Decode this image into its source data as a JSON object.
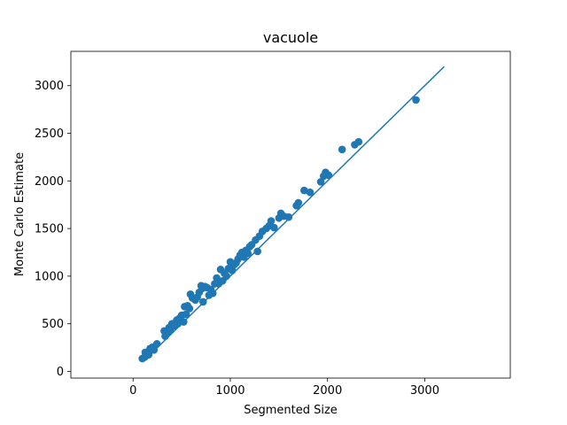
{
  "chart_data": {
    "type": "scatter",
    "title": "vacuole",
    "xlabel": "Segmented Size",
    "ylabel": "Monte Carlo Estimate",
    "xlim": [
      -640,
      3880
    ],
    "ylim": [
      -70,
      3360
    ],
    "xticks": [
      0,
      1000,
      2000,
      3000
    ],
    "xtick_labels": [
      "0",
      "1000",
      "2000",
      "3000"
    ],
    "yticks": [
      0,
      500,
      1000,
      1500,
      2000,
      2500,
      3000
    ],
    "ytick_labels": [
      "0",
      "500",
      "1000",
      "1500",
      "2000",
      "2500",
      "3000"
    ],
    "grid": false,
    "legend": "none",
    "colors": {
      "series": "#1f77b4",
      "axes": "#000000",
      "background": "#ffffff"
    },
    "line": {
      "x": [
        100,
        3200
      ],
      "y": [
        100,
        3200
      ]
    },
    "points": [
      [
        95,
        135
      ],
      [
        120,
        150
      ],
      [
        125,
        200
      ],
      [
        160,
        175
      ],
      [
        175,
        240
      ],
      [
        200,
        255
      ],
      [
        215,
        225
      ],
      [
        245,
        290
      ],
      [
        320,
        425
      ],
      [
        330,
        370
      ],
      [
        350,
        400
      ],
      [
        370,
        460
      ],
      [
        380,
        440
      ],
      [
        400,
        500
      ],
      [
        420,
        475
      ],
      [
        450,
        540
      ],
      [
        460,
        500
      ],
      [
        480,
        560
      ],
      [
        500,
        590
      ],
      [
        520,
        520
      ],
      [
        530,
        680
      ],
      [
        545,
        600
      ],
      [
        560,
        690
      ],
      [
        580,
        660
      ],
      [
        590,
        810
      ],
      [
        610,
        770
      ],
      [
        640,
        750
      ],
      [
        660,
        780
      ],
      [
        680,
        830
      ],
      [
        700,
        900
      ],
      [
        710,
        870
      ],
      [
        720,
        730
      ],
      [
        740,
        890
      ],
      [
        760,
        880
      ],
      [
        780,
        800
      ],
      [
        800,
        860
      ],
      [
        820,
        820
      ],
      [
        840,
        920
      ],
      [
        860,
        980
      ],
      [
        880,
        920
      ],
      [
        900,
        1070
      ],
      [
        920,
        950
      ],
      [
        940,
        1030
      ],
      [
        960,
        1000
      ],
      [
        980,
        1080
      ],
      [
        1000,
        1150
      ],
      [
        1020,
        1060
      ],
      [
        1040,
        1120
      ],
      [
        1060,
        1140
      ],
      [
        1080,
        1180
      ],
      [
        1100,
        1220
      ],
      [
        1120,
        1250
      ],
      [
        1140,
        1200
      ],
      [
        1160,
        1270
      ],
      [
        1180,
        1240
      ],
      [
        1200,
        1310
      ],
      [
        1220,
        1330
      ],
      [
        1260,
        1380
      ],
      [
        1280,
        1260
      ],
      [
        1300,
        1420
      ],
      [
        1330,
        1470
      ],
      [
        1370,
        1500
      ],
      [
        1400,
        1530
      ],
      [
        1420,
        1580
      ],
      [
        1450,
        1510
      ],
      [
        1500,
        1610
      ],
      [
        1520,
        1660
      ],
      [
        1550,
        1630
      ],
      [
        1600,
        1620
      ],
      [
        1680,
        1740
      ],
      [
        1700,
        1770
      ],
      [
        1760,
        1900
      ],
      [
        1820,
        1880
      ],
      [
        1930,
        1990
      ],
      [
        1960,
        2050
      ],
      [
        1980,
        2090
      ],
      [
        2010,
        2060
      ],
      [
        2150,
        2330
      ],
      [
        2280,
        2380
      ],
      [
        2320,
        2410
      ],
      [
        2910,
        2850
      ]
    ]
  }
}
